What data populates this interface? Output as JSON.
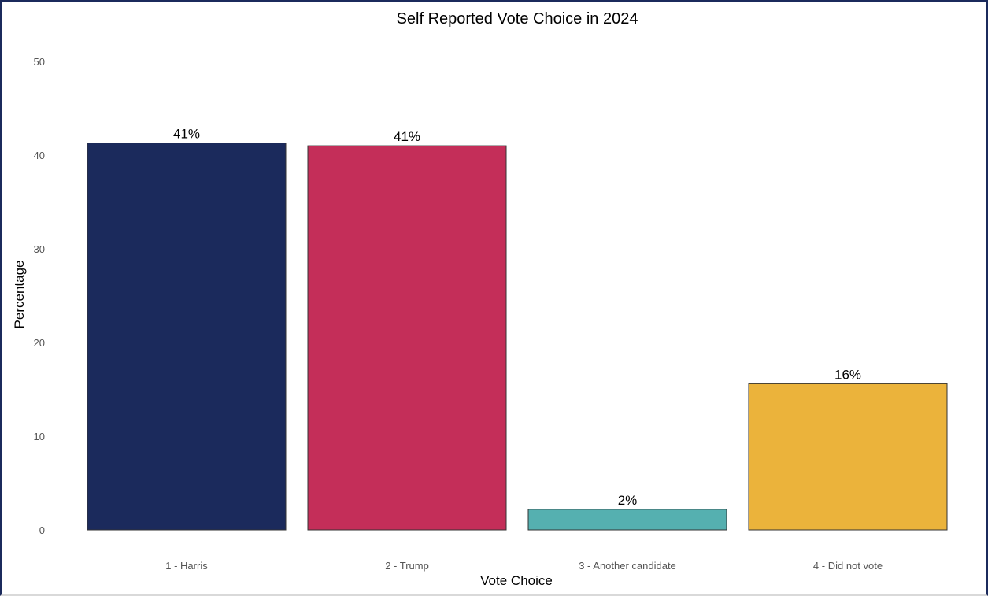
{
  "chart_data": {
    "type": "bar",
    "title": "Self Reported Vote Choice in 2024",
    "xlabel": "Vote Choice",
    "ylabel": "Percentage",
    "categories": [
      "1 - Harris",
      "2 - Trump",
      "3 - Another candidate",
      "4 - Did not vote"
    ],
    "values": [
      41.3,
      41.0,
      2.2,
      15.6
    ],
    "data_labels": [
      "41%",
      "41%",
      "2%",
      "16%"
    ],
    "colors": [
      "#1b2a5c",
      "#c42e59",
      "#55b0b0",
      "#ebb33b"
    ],
    "ylim": [
      0,
      50
    ],
    "yticks": [
      0,
      10,
      20,
      30,
      40,
      50
    ],
    "grid": false,
    "legend": "none"
  }
}
